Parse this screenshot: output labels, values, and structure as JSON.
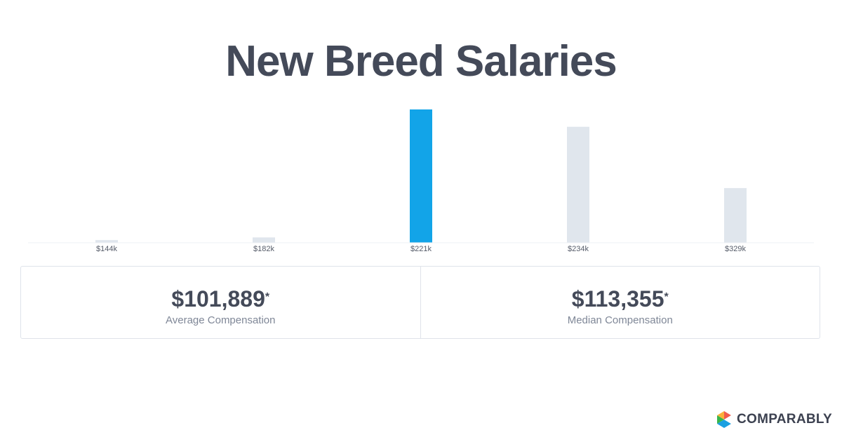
{
  "title": "New Breed Salaries",
  "chart_data": {
    "type": "bar",
    "categories": [
      "$144k",
      "$182k",
      "$221k",
      "$234k",
      "$329k"
    ],
    "values": [
      2,
      4,
      100,
      87,
      41
    ],
    "highlight_index": 2,
    "highlight_color": "#12a4e8",
    "bar_color": "#e0e6ed",
    "ylim": [
      0,
      100
    ],
    "grid": false,
    "legend": "none"
  },
  "stats": {
    "average": {
      "value": "$101,889",
      "mark": "*",
      "label": "Average Compensation"
    },
    "median": {
      "value": "$113,355",
      "mark": "*",
      "label": "Median Compensation"
    }
  },
  "brand": {
    "name": "COMPARABLY",
    "colors": [
      "#f15a4e",
      "#fbb03b",
      "#39b54a",
      "#1ba0e1"
    ]
  }
}
